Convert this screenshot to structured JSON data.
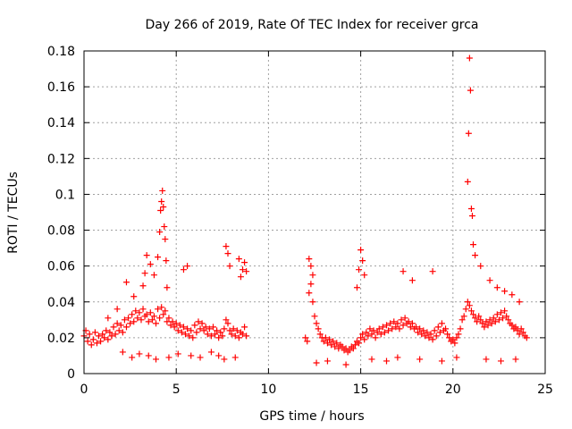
{
  "chart_data": {
    "type": "scatter",
    "title": "Day 266 of 2019, Rate Of TEC Index for receiver grca",
    "xlabel": "GPS time / hours",
    "ylabel": "ROTI / TECUs",
    "xlim": [
      0,
      25
    ],
    "ylim": [
      0,
      0.18
    ],
    "x_ticks": [
      0,
      5,
      10,
      15,
      20,
      25
    ],
    "y_ticks": [
      0,
      0.02,
      0.04,
      0.06,
      0.08,
      0.1,
      0.12,
      0.14,
      0.16,
      0.18
    ],
    "x_tick_labels": [
      "0",
      "5",
      "10",
      "15",
      "20",
      "25"
    ],
    "y_tick_labels": [
      "0",
      "0.02",
      "0.04",
      "0.06",
      "0.08",
      "0.1",
      "0.12",
      "0.14",
      "0.16",
      "0.18"
    ],
    "grid": true,
    "marker": "+",
    "color": "#ff0000",
    "series": [
      {
        "x": [
          0.0,
          0.1,
          0.2,
          0.3,
          0.4,
          0.5,
          0.6,
          0.7,
          0.8,
          0.9,
          1.0,
          1.1,
          1.2,
          1.3,
          1.4,
          1.5,
          1.6,
          1.7,
          1.8,
          1.9,
          2.0,
          2.1,
          2.2,
          2.3,
          2.4,
          2.5,
          2.6,
          2.7,
          2.8,
          2.9,
          3.0,
          3.1,
          3.2,
          3.3,
          3.4,
          3.5,
          3.6,
          3.7,
          3.8,
          3.9,
          4.0,
          4.1,
          4.2,
          4.3,
          4.4,
          4.5,
          4.6,
          4.7,
          4.8,
          4.9,
          5.0,
          5.1,
          5.2,
          5.3,
          5.4,
          5.5,
          5.6,
          5.7,
          5.8,
          5.9,
          6.0,
          6.1,
          6.2,
          6.3,
          6.4,
          6.5,
          6.6,
          6.7,
          6.8,
          6.9,
          7.0,
          7.1,
          7.2,
          7.3,
          7.4,
          7.5,
          7.6,
          7.7,
          7.8,
          7.9,
          8.0,
          8.1,
          8.2,
          8.3,
          8.4,
          8.5,
          8.6,
          8.7,
          8.8,
          1.3,
          1.8,
          2.3,
          2.7,
          3.2,
          3.3,
          3.4,
          3.6,
          3.8,
          4.0,
          4.1,
          4.15,
          4.2,
          4.25,
          4.3,
          4.35,
          4.4,
          4.45,
          4.5,
          5.4,
          5.6,
          7.7,
          7.8,
          7.9,
          8.4,
          8.5,
          8.6,
          8.7,
          8.8,
          2.1,
          2.6,
          3.0,
          3.5,
          3.9,
          4.6,
          5.1,
          5.8,
          6.3,
          6.9,
          7.3,
          7.6,
          8.2,
          12.0,
          12.1,
          12.2,
          12.3,
          12.4,
          12.5,
          12.6,
          12.7,
          12.8,
          12.9,
          13.0,
          13.1,
          13.2,
          13.3,
          13.4,
          13.5,
          13.6,
          13.7,
          13.8,
          13.9,
          14.0,
          14.1,
          14.2,
          14.3,
          14.4,
          14.5,
          14.6,
          14.7,
          14.8,
          14.9,
          15.0,
          15.1,
          15.2,
          15.3,
          15.4,
          15.5,
          15.6,
          15.7,
          15.8,
          15.9,
          16.0,
          16.1,
          16.2,
          16.3,
          16.4,
          16.5,
          16.6,
          16.7,
          16.8,
          16.9,
          17.0,
          17.1,
          17.2,
          17.3,
          17.4,
          17.5,
          17.6,
          17.7,
          17.8,
          17.9,
          18.0,
          18.1,
          18.2,
          18.3,
          18.4,
          18.5,
          18.6,
          18.7,
          18.8,
          18.9,
          19.0,
          19.1,
          19.2,
          19.3,
          19.4,
          19.5,
          19.6,
          19.7,
          19.8,
          19.9,
          20.0,
          20.1,
          20.2,
          20.3,
          20.4,
          20.5,
          20.6,
          20.7,
          20.8,
          20.9,
          21.0,
          21.1,
          21.2,
          21.3,
          21.4,
          21.5,
          21.6,
          21.7,
          21.8,
          21.9,
          22.0,
          22.1,
          22.2,
          22.3,
          22.4,
          22.5,
          22.6,
          22.7,
          22.8,
          22.9,
          23.0,
          23.1,
          23.2,
          23.3,
          23.4,
          23.5,
          23.6,
          23.7,
          23.8,
          23.9,
          24.0,
          12.2,
          12.3,
          12.4,
          14.8,
          14.9,
          15.0,
          15.1,
          15.2,
          17.3,
          17.8,
          18.9,
          20.8,
          20.85,
          20.9,
          20.95,
          21.0,
          21.05,
          21.1,
          21.2,
          21.5,
          22.0,
          22.4,
          22.8,
          23.2,
          23.6,
          12.6,
          13.2,
          14.2,
          15.6,
          16.4,
          17.0,
          18.2,
          19.4,
          20.2,
          21.8,
          22.6,
          23.4
        ],
        "y": [
          0.021,
          0.024,
          0.018,
          0.022,
          0.016,
          0.019,
          0.023,
          0.017,
          0.021,
          0.018,
          0.022,
          0.02,
          0.024,
          0.019,
          0.023,
          0.021,
          0.026,
          0.022,
          0.028,
          0.024,
          0.027,
          0.023,
          0.03,
          0.026,
          0.031,
          0.028,
          0.033,
          0.029,
          0.035,
          0.031,
          0.034,
          0.03,
          0.036,
          0.032,
          0.033,
          0.029,
          0.034,
          0.03,
          0.032,
          0.028,
          0.036,
          0.031,
          0.037,
          0.033,
          0.035,
          0.029,
          0.031,
          0.027,
          0.029,
          0.026,
          0.028,
          0.024,
          0.027,
          0.023,
          0.026,
          0.022,
          0.025,
          0.021,
          0.024,
          0.02,
          0.027,
          0.023,
          0.029,
          0.025,
          0.028,
          0.024,
          0.026,
          0.022,
          0.025,
          0.021,
          0.026,
          0.022,
          0.024,
          0.02,
          0.023,
          0.021,
          0.025,
          0.03,
          0.028,
          0.024,
          0.022,
          0.025,
          0.021,
          0.024,
          0.02,
          0.023,
          0.022,
          0.026,
          0.021,
          0.031,
          0.036,
          0.051,
          0.043,
          0.049,
          0.056,
          0.066,
          0.061,
          0.055,
          0.065,
          0.079,
          0.091,
          0.096,
          0.102,
          0.093,
          0.082,
          0.075,
          0.063,
          0.048,
          0.058,
          0.06,
          0.071,
          0.067,
          0.06,
          0.064,
          0.054,
          0.058,
          0.062,
          0.057,
          0.012,
          0.009,
          0.011,
          0.01,
          0.008,
          0.009,
          0.011,
          0.01,
          0.009,
          0.012,
          0.01,
          0.008,
          0.009,
          0.02,
          0.018,
          0.045,
          0.05,
          0.04,
          0.032,
          0.028,
          0.025,
          0.022,
          0.02,
          0.018,
          0.02,
          0.017,
          0.019,
          0.016,
          0.018,
          0.015,
          0.017,
          0.014,
          0.016,
          0.015,
          0.013,
          0.014,
          0.012,
          0.013,
          0.015,
          0.014,
          0.016,
          0.018,
          0.017,
          0.02,
          0.022,
          0.019,
          0.023,
          0.021,
          0.025,
          0.022,
          0.024,
          0.02,
          0.023,
          0.025,
          0.022,
          0.026,
          0.023,
          0.027,
          0.024,
          0.028,
          0.025,
          0.029,
          0.026,
          0.028,
          0.025,
          0.03,
          0.027,
          0.031,
          0.028,
          0.029,
          0.026,
          0.028,
          0.025,
          0.026,
          0.023,
          0.025,
          0.022,
          0.024,
          0.021,
          0.023,
          0.02,
          0.022,
          0.019,
          0.024,
          0.021,
          0.026,
          0.023,
          0.028,
          0.024,
          0.025,
          0.022,
          0.02,
          0.018,
          0.019,
          0.017,
          0.02,
          0.022,
          0.025,
          0.03,
          0.032,
          0.036,
          0.04,
          0.038,
          0.035,
          0.033,
          0.031,
          0.029,
          0.032,
          0.03,
          0.028,
          0.026,
          0.029,
          0.027,
          0.03,
          0.028,
          0.031,
          0.029,
          0.033,
          0.03,
          0.034,
          0.031,
          0.035,
          0.032,
          0.03,
          0.028,
          0.027,
          0.025,
          0.026,
          0.024,
          0.022,
          0.025,
          0.023,
          0.021,
          0.02,
          0.064,
          0.06,
          0.055,
          0.048,
          0.058,
          0.069,
          0.063,
          0.055,
          0.057,
          0.052,
          0.057,
          0.107,
          0.134,
          0.176,
          0.158,
          0.092,
          0.088,
          0.072,
          0.066,
          0.06,
          0.052,
          0.048,
          0.046,
          0.044,
          0.04,
          0.006,
          0.007,
          0.005,
          0.008,
          0.007,
          0.009,
          0.008,
          0.007,
          0.009,
          0.008,
          0.007,
          0.008
        ]
      }
    ]
  }
}
